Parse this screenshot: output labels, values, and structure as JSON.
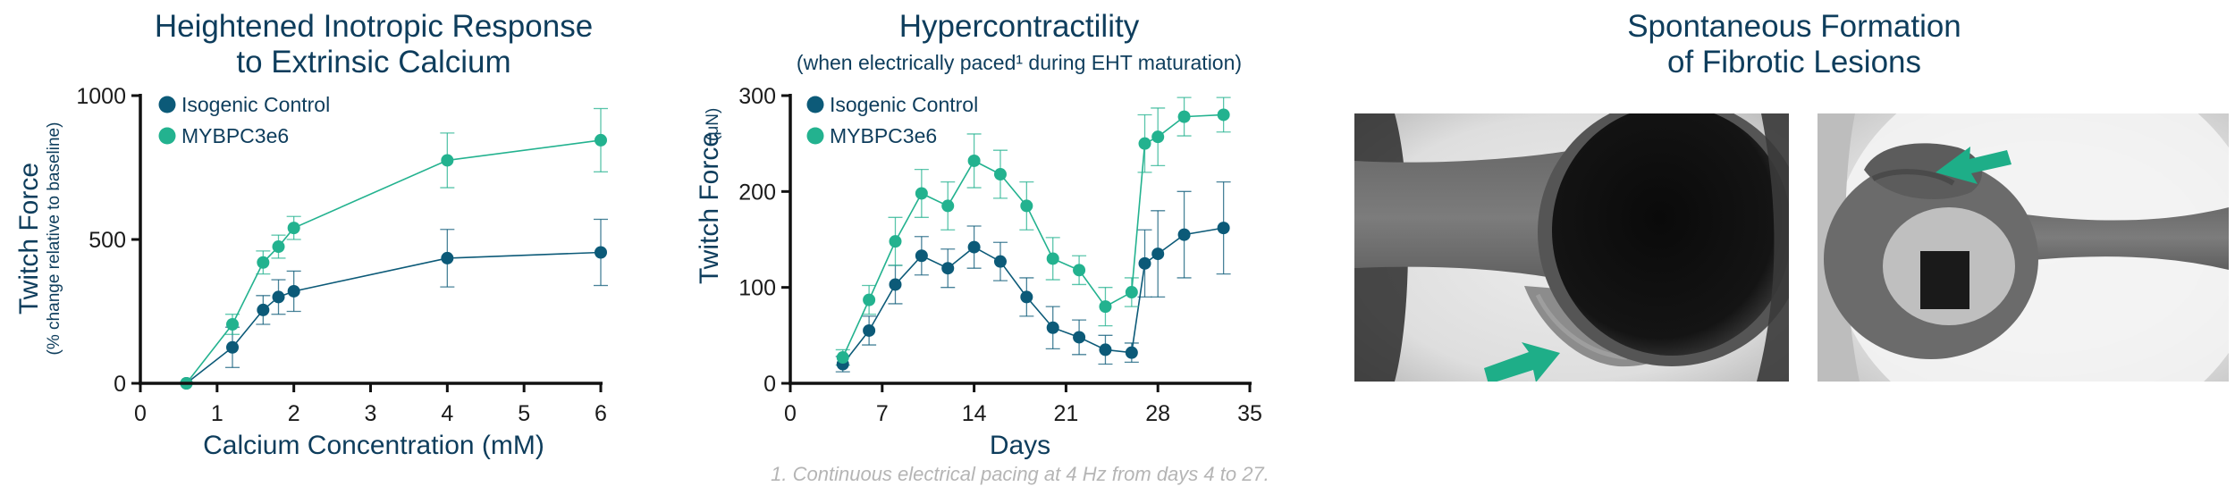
{
  "colors": {
    "control": "#0c5a78",
    "mutant": "#23b28f",
    "title": "#0e3d5c",
    "arrow": "#1eae88"
  },
  "chart_data": [
    {
      "type": "line",
      "title_lines": [
        "Heightened Inotropic Response",
        "to Extrinsic Calcium"
      ],
      "xlabel": "Calcium Concentration (mM)",
      "ylabel": "Twitch Force",
      "ylabel_sub": "(% change relative to baseline)",
      "xlim": [
        0,
        6
      ],
      "ylim": [
        0,
        1000
      ],
      "xticks": [
        0,
        1,
        2,
        3,
        4,
        5,
        6
      ],
      "yticks": [
        0,
        500,
        1000
      ],
      "legend": [
        "Isogenic Control",
        "MYBPC3e6"
      ],
      "series": [
        {
          "name": "Isogenic Control",
          "x": [
            0.6,
            1.2,
            1.6,
            1.8,
            2.0,
            4.0,
            6.0
          ],
          "y": [
            0,
            125,
            255,
            300,
            320,
            435,
            455
          ],
          "err": [
            0,
            70,
            50,
            60,
            70,
            100,
            115
          ]
        },
        {
          "name": "MYBPC3e6",
          "x": [
            0.6,
            1.2,
            1.6,
            1.8,
            2.0,
            4.0,
            6.0
          ],
          "y": [
            0,
            205,
            420,
            475,
            540,
            775,
            845
          ],
          "err": [
            0,
            35,
            40,
            40,
            40,
            95,
            110
          ]
        }
      ]
    },
    {
      "type": "line",
      "title_lines": [
        "Hypercontractility"
      ],
      "subtitle": "(when electrically paced¹ during EHT maturation)",
      "xlabel": "Days",
      "ylabel": "Twitch Force",
      "ylabel_unit": "(μN)",
      "xlim": [
        0,
        35
      ],
      "ylim": [
        0,
        300
      ],
      "xticks": [
        0,
        7,
        14,
        21,
        28,
        35
      ],
      "yticks": [
        0,
        100,
        200,
        300
      ],
      "legend": [
        "Isogenic Control",
        "MYBPC3e6"
      ],
      "footnote": "1. Continuous electrical pacing at 4 Hz from days 4 to 27.",
      "series": [
        {
          "name": "Isogenic Control",
          "x": [
            4,
            6,
            8,
            10,
            12,
            14,
            16,
            18,
            20,
            22,
            24,
            26,
            27,
            28,
            30,
            33
          ],
          "y": [
            20,
            55,
            103,
            133,
            120,
            142,
            127,
            90,
            58,
            48,
            35,
            32,
            125,
            135,
            155,
            162
          ],
          "err": [
            8,
            15,
            20,
            20,
            20,
            22,
            20,
            20,
            22,
            18,
            15,
            10,
            35,
            45,
            45,
            48
          ]
        },
        {
          "name": "MYBPC3e6",
          "x": [
            4,
            6,
            8,
            10,
            12,
            14,
            16,
            18,
            20,
            22,
            24,
            26,
            27,
            28,
            30,
            33
          ],
          "y": [
            27,
            87,
            148,
            198,
            185,
            232,
            218,
            185,
            130,
            118,
            80,
            95,
            250,
            257,
            278,
            280
          ],
          "err": [
            8,
            15,
            25,
            25,
            25,
            28,
            25,
            25,
            22,
            15,
            20,
            15,
            30,
            30,
            20,
            18
          ]
        }
      ]
    }
  ],
  "panel3": {
    "title_lines": [
      "Spontaneous Formation",
      "of Fibrotic Lesions"
    ]
  }
}
